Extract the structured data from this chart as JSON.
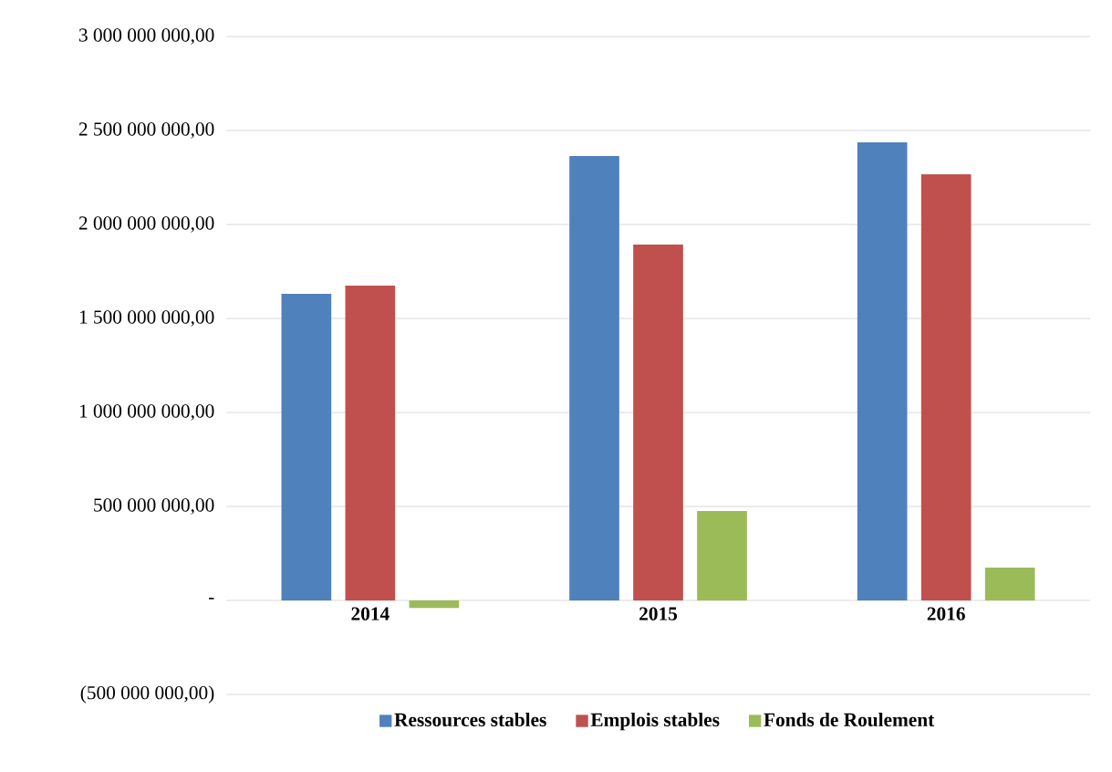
{
  "chart_data": {
    "type": "bar",
    "categories": [
      "2014",
      "2015",
      "2016"
    ],
    "series": [
      {
        "name": "Ressources stables",
        "color": "#4f81bd",
        "values": [
          1631000000,
          2364000000,
          2437000000
        ]
      },
      {
        "name": "Emplois stables",
        "color": "#c0504d",
        "values": [
          1675000000,
          1893000000,
          2267000000
        ]
      },
      {
        "name": "Fonds de Roulement",
        "color": "#9bbb59",
        "values": [
          -40000000,
          476000000,
          175000000
        ]
      }
    ],
    "ylim": [
      -500000000,
      3000000000
    ],
    "yticks": [
      {
        "value": -500000000,
        "label": "(500 000 000,00)"
      },
      {
        "value": 0,
        "label": "-"
      },
      {
        "value": 500000000,
        "label": "500 000 000,00"
      },
      {
        "value": 1000000000,
        "label": "1 000 000 000,00"
      },
      {
        "value": 1500000000,
        "label": "1 500 000 000,00"
      },
      {
        "value": 2000000000,
        "label": "2 000 000 000,00"
      },
      {
        "value": 2500000000,
        "label": "2 500 000 000,00"
      },
      {
        "value": 3000000000,
        "label": "3 000 000 000,00"
      }
    ],
    "grid": "y",
    "legend": "bottom"
  }
}
